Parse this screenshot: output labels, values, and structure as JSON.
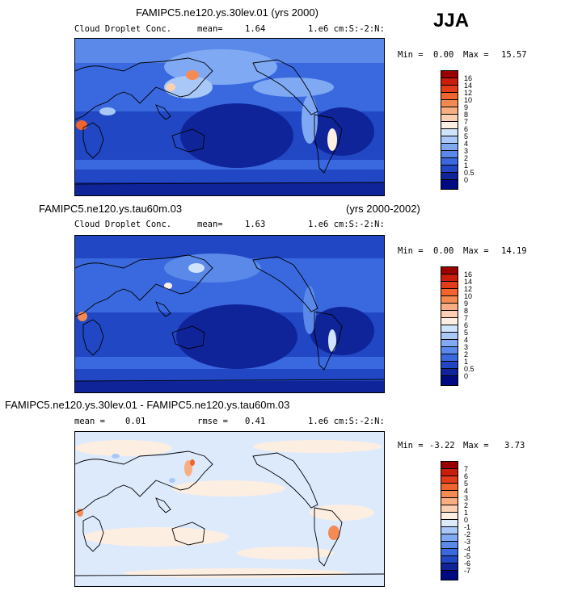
{
  "season": "JJA",
  "panels": [
    {
      "title": "FAMIPC5.ne120.ys.30lev.01 (yrs 2000)",
      "title_right": "",
      "variable": "Cloud Droplet Conc.",
      "mean_label": "mean=",
      "mean_value": "1.64",
      "rmse_label": "",
      "rmse_value": "",
      "units": "1.e6 cm:S:-2:N:",
      "min_label": "Min =",
      "min_value": "0.00",
      "max_label": "Max =",
      "max_value": "15.57",
      "colorbar_labels": [
        "16",
        "14",
        "12",
        "10",
        "9",
        "8",
        "7",
        "6",
        "5",
        "4",
        "3",
        "2",
        "1",
        "0.5",
        "0"
      ],
      "colorbar_colors": [
        "#9b0000",
        "#c81e0a",
        "#e23c1a",
        "#f0642e",
        "#f58a52",
        "#f9ae82",
        "#fbd0b2",
        "#fdeee2",
        "#cfe3fb",
        "#a9c8f8",
        "#7fa9f2",
        "#5a89ea",
        "#3a69df",
        "#2147c4",
        "#10249a",
        "#000a80"
      ]
    },
    {
      "title": "FAMIPC5.ne120.ys.tau60m.03",
      "title_right": "(yrs 2000-2002)",
      "variable": "Cloud Droplet Conc.",
      "mean_label": "mean=",
      "mean_value": "1.63",
      "rmse_label": "",
      "rmse_value": "",
      "units": "1.e6 cm:S:-2:N:",
      "min_label": "Min =",
      "min_value": "0.00",
      "max_label": "Max =",
      "max_value": "14.19",
      "colorbar_labels": [
        "16",
        "14",
        "12",
        "10",
        "9",
        "8",
        "7",
        "6",
        "5",
        "4",
        "3",
        "2",
        "1",
        "0.5",
        "0"
      ],
      "colorbar_colors": [
        "#9b0000",
        "#c81e0a",
        "#e23c1a",
        "#f0642e",
        "#f58a52",
        "#f9ae82",
        "#fbd0b2",
        "#fdeee2",
        "#cfe3fb",
        "#a9c8f8",
        "#7fa9f2",
        "#5a89ea",
        "#3a69df",
        "#2147c4",
        "#10249a",
        "#000a80"
      ]
    },
    {
      "title": "FAMIPC5.ne120.ys.30lev.01 - FAMIPC5.ne120.ys.tau60m.03",
      "title_right": "",
      "variable": "",
      "mean_label": "mean =",
      "mean_value": "0.01",
      "rmse_label": "rmse =",
      "rmse_value": "0.41",
      "units": "1.e6 cm:S:-2:N:",
      "min_label": "Min =",
      "min_value": "-3.22",
      "max_label": "Max =",
      "max_value": "3.73",
      "colorbar_labels": [
        "7",
        "6",
        "5",
        "4",
        "3",
        "2",
        "1",
        "0",
        "-1",
        "-2",
        "-3",
        "-4",
        "-5",
        "-6",
        "-7"
      ],
      "colorbar_colors": [
        "#9b0000",
        "#c81e0a",
        "#e23c1a",
        "#f0642e",
        "#f58a52",
        "#f9ae82",
        "#fbd0b2",
        "#fdeee2",
        "#ddeafc",
        "#a9c8f8",
        "#7fa9f2",
        "#5a89ea",
        "#3a69df",
        "#2147c4",
        "#10249a",
        "#000a80"
      ]
    }
  ],
  "chart_data": [
    {
      "type": "heatmap",
      "title": "FAMIPC5.ne120.ys.30lev.01 (yrs 2000)",
      "variable": "Cloud Droplet Conc.",
      "units": "1.e6 cm:S:-2:N:",
      "season": "JJA",
      "mean": 1.64,
      "min": 0.0,
      "max": 15.57,
      "contour_levels": [
        0,
        0.5,
        1,
        2,
        3,
        4,
        5,
        6,
        7,
        8,
        9,
        10,
        12,
        14,
        16
      ]
    },
    {
      "type": "heatmap",
      "title": "FAMIPC5.ne120.ys.tau60m.03 (yrs 2000-2002)",
      "variable": "Cloud Droplet Conc.",
      "units": "1.e6 cm:S:-2:N:",
      "season": "JJA",
      "mean": 1.63,
      "min": 0.0,
      "max": 14.19,
      "contour_levels": [
        0,
        0.5,
        1,
        2,
        3,
        4,
        5,
        6,
        7,
        8,
        9,
        10,
        12,
        14,
        16
      ]
    },
    {
      "type": "heatmap",
      "title": "FAMIPC5.ne120.ys.30lev.01 - FAMIPC5.ne120.ys.tau60m.03",
      "units": "1.e6 cm:S:-2:N:",
      "season": "JJA",
      "mean": 0.01,
      "rmse": 0.41,
      "min": -3.22,
      "max": 3.73,
      "contour_levels": [
        -7,
        -6,
        -5,
        -4,
        -3,
        -2,
        -1,
        0,
        1,
        2,
        3,
        4,
        5,
        6,
        7
      ]
    }
  ]
}
